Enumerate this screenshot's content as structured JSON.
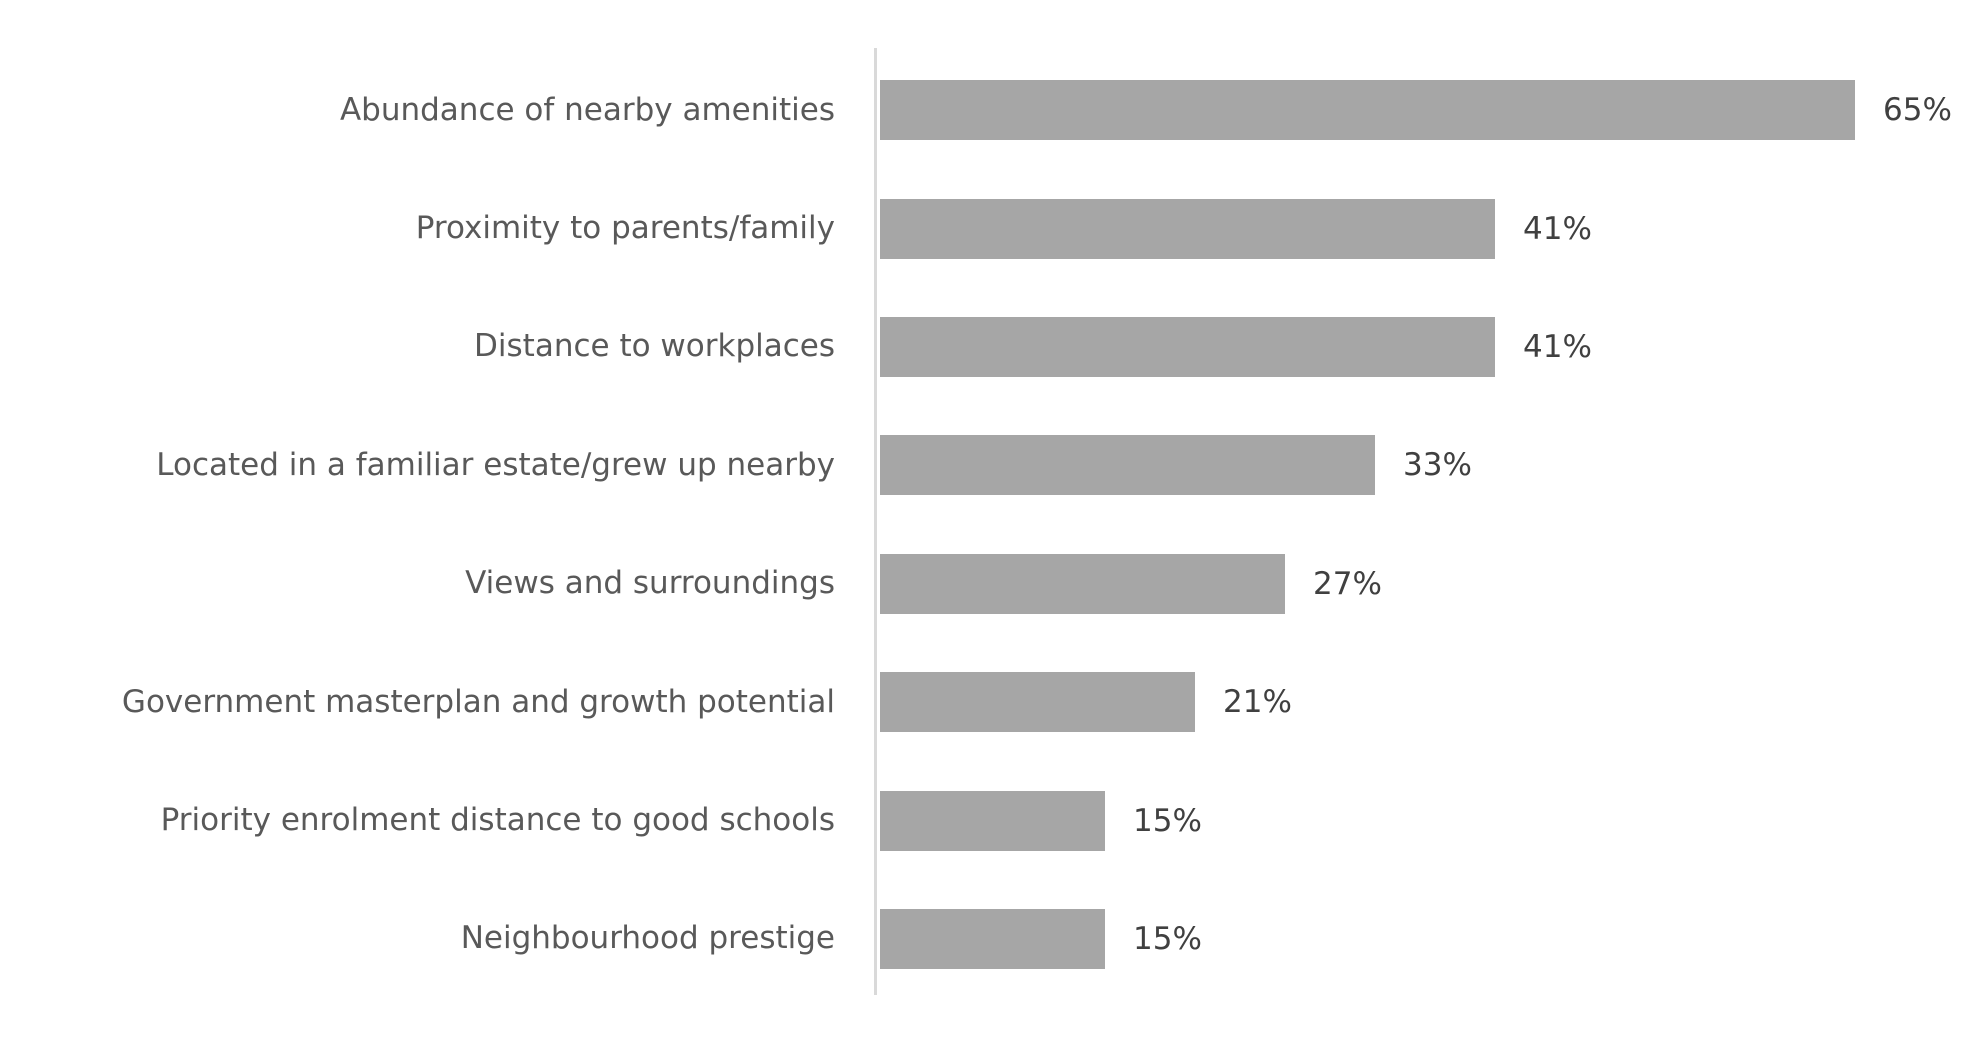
{
  "chart_data": {
    "type": "bar",
    "orientation": "horizontal",
    "title": "",
    "xlabel": "",
    "ylabel": "",
    "categories": [
      "Abundance of nearby amenities",
      "Proximity to parents/family",
      "Distance to workplaces",
      "Located in a familiar estate/grew up nearby",
      "Views and surroundings",
      "Government masterplan and growth potential",
      "Priority enrolment distance to good schools",
      "Neighbourhood prestige"
    ],
    "values": [
      65,
      41,
      41,
      33,
      27,
      21,
      15,
      15
    ],
    "value_labels": [
      "65%",
      "41%",
      "41%",
      "33%",
      "27%",
      "21%",
      "15%",
      "15%"
    ],
    "value_suffix": "%",
    "xlim": [
      0,
      73.3
    ],
    "grid": false,
    "legend": false,
    "data_labels_position": "outside-end",
    "bar_color": "#A6A6A6",
    "axis_line_color": "#D9D9D9",
    "category_label_color": "#595959",
    "value_label_color": "#404040",
    "background_color": "#FFFFFF"
  }
}
